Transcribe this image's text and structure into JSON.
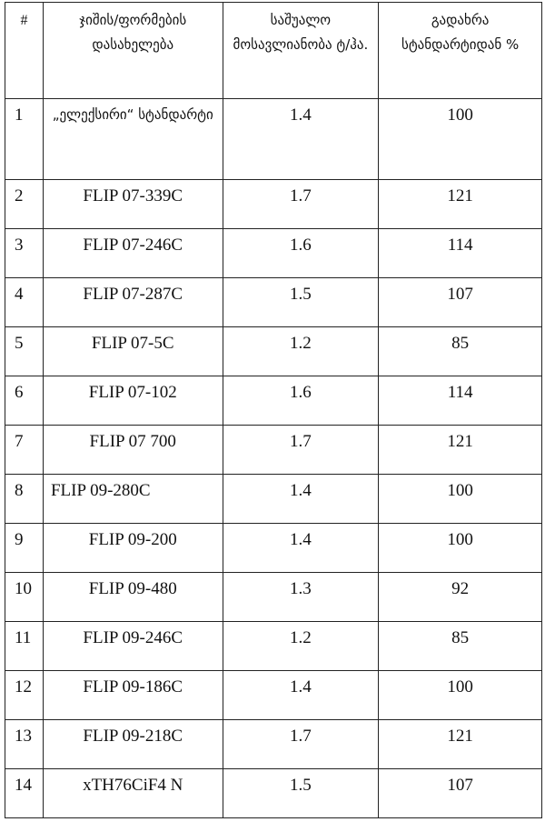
{
  "table": {
    "headers": [
      "#",
      "ჯიშის/ფორმების დასახელება",
      "საშუალო მოსავლიანობა ტ/ჰა.",
      "გადახრა სტანდარტიდან %"
    ],
    "rows": [
      [
        "1",
        "„ელექსირი“ სტანდარტი",
        "1.4",
        "100"
      ],
      [
        "2",
        "FLIP 07-339C",
        "1.7",
        "121"
      ],
      [
        "3",
        "FLIP 07-246C",
        "1.6",
        "114"
      ],
      [
        "4",
        "FLIP 07-287C",
        "1.5",
        "107"
      ],
      [
        "5",
        "FLIP 07-5C",
        "1.2",
        "85"
      ],
      [
        "6",
        "FLIP 07-102",
        "1.6",
        "114"
      ],
      [
        "7",
        "FLIP 07 700",
        "1.7",
        "121"
      ],
      [
        "8",
        "FLIP 09-280C",
        "1.4",
        "100"
      ],
      [
        "9",
        "FLIP 09-200",
        "1.4",
        "100"
      ],
      [
        "10",
        "FLIP 09-480",
        "1.3",
        "92"
      ],
      [
        "11",
        "FLIP 09-246C",
        "1.2",
        "85"
      ],
      [
        "12",
        "FLIP 09-186C",
        "1.4",
        "100"
      ],
      [
        "13",
        "FLIP 09-218C",
        "1.7",
        "121"
      ],
      [
        "14",
        "xTH76CiF4 N",
        "1.5",
        "107"
      ]
    ]
  }
}
